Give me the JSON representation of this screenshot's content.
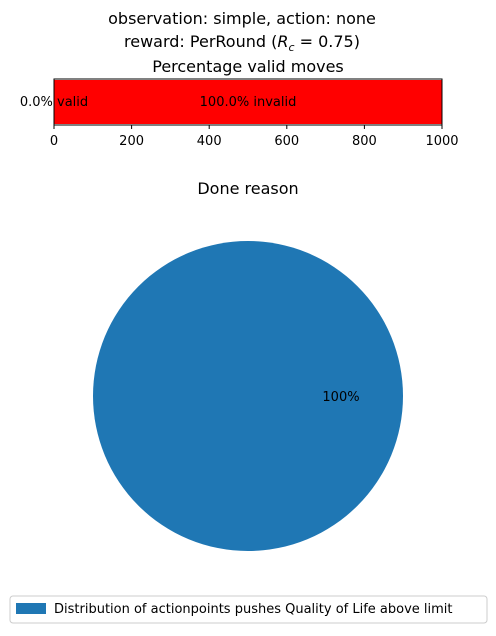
{
  "figure": {
    "suptitle_line1": "observation: simple, action: none",
    "suptitle_line2_prefix": "reward: PerRound (",
    "suptitle_line2_math_var": "R",
    "suptitle_line2_math_sub": "c",
    "suptitle_line2_math_rest": " = 0.75)"
  },
  "chart_data": [
    {
      "type": "bar",
      "orientation": "horizontal",
      "stacked": true,
      "title": "Percentage valid moves",
      "xlim": [
        0,
        1000
      ],
      "xticks": [
        0,
        200,
        400,
        600,
        800,
        1000
      ],
      "series": [
        {
          "name": "valid",
          "value": 0,
          "color": "#00aa00",
          "label": "0.0% valid"
        },
        {
          "name": "invalid",
          "value": 1000,
          "color": "#ff0000",
          "label": "100.0% invalid"
        }
      ],
      "grid": false
    },
    {
      "type": "pie",
      "title": "Done reason",
      "slices": [
        {
          "label": "Distribution of actionpoints pushes Quality of Life above limit",
          "value": 100,
          "pct_label": "100%",
          "color": "#1f77b4"
        }
      ],
      "legend": {
        "placement": "bottom"
      }
    }
  ]
}
